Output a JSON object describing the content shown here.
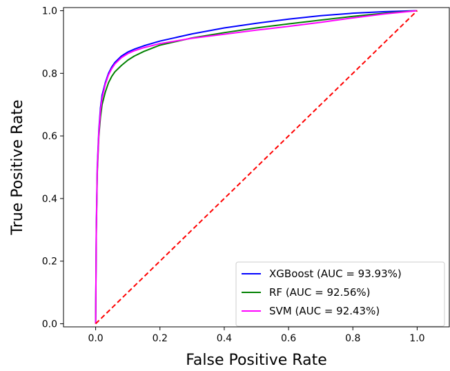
{
  "chart_data": {
    "type": "line",
    "title": "",
    "xlabel": "False Positive Rate",
    "ylabel": "True Positive Rate",
    "xlim": [
      -0.1,
      1.1
    ],
    "ylim": [
      -0.01,
      1.01
    ],
    "xticks": [
      0.0,
      0.2,
      0.4,
      0.6,
      0.8,
      1.0
    ],
    "xtick_labels": [
      "0.0",
      "0.2",
      "0.4",
      "0.6",
      "0.8",
      "1.0"
    ],
    "yticks": [
      0.0,
      0.2,
      0.4,
      0.6,
      0.8,
      1.0
    ],
    "ytick_labels": [
      "0.0",
      "0.2",
      "0.4",
      "0.6",
      "0.8",
      "1.0"
    ],
    "grid": false,
    "legend_position": "lower-right",
    "series": [
      {
        "name": "XGBoost (AUC = 93.93%)",
        "color": "#0000ff",
        "style": "solid",
        "x": [
          0,
          0.002,
          0.005,
          0.01,
          0.015,
          0.02,
          0.03,
          0.04,
          0.05,
          0.06,
          0.08,
          0.1,
          0.12,
          0.15,
          0.2,
          0.3,
          0.4,
          0.5,
          0.6,
          0.7,
          0.8,
          0.9,
          1.0
        ],
        "y": [
          0,
          0.3,
          0.5,
          0.62,
          0.69,
          0.73,
          0.77,
          0.8,
          0.82,
          0.835,
          0.855,
          0.868,
          0.877,
          0.888,
          0.903,
          0.926,
          0.945,
          0.96,
          0.973,
          0.984,
          0.992,
          0.997,
          1.0
        ]
      },
      {
        "name": "RF (AUC = 92.56%)",
        "color": "#008000",
        "style": "solid",
        "x": [
          0,
          0.002,
          0.005,
          0.01,
          0.015,
          0.02,
          0.03,
          0.04,
          0.05,
          0.06,
          0.08,
          0.1,
          0.12,
          0.15,
          0.2,
          0.3,
          0.4,
          0.5,
          0.6,
          0.7,
          0.8,
          0.9,
          1.0
        ],
        "y": [
          0,
          0.28,
          0.48,
          0.6,
          0.66,
          0.7,
          0.74,
          0.77,
          0.79,
          0.805,
          0.825,
          0.842,
          0.855,
          0.87,
          0.89,
          0.913,
          0.93,
          0.945,
          0.958,
          0.97,
          0.982,
          0.992,
          1.0
        ]
      },
      {
        "name": "SVM (AUC = 92.43%)",
        "color": "#ff00ff",
        "style": "solid",
        "x": [
          0,
          0.002,
          0.005,
          0.01,
          0.015,
          0.02,
          0.03,
          0.04,
          0.05,
          0.06,
          0.08,
          0.1,
          0.12,
          0.15,
          0.2,
          0.3,
          0.4,
          0.5,
          0.6,
          0.7,
          0.8,
          0.9,
          1.0
        ],
        "y": [
          0,
          0.29,
          0.49,
          0.61,
          0.68,
          0.72,
          0.765,
          0.795,
          0.815,
          0.83,
          0.85,
          0.863,
          0.872,
          0.882,
          0.895,
          0.912,
          0.925,
          0.938,
          0.95,
          0.963,
          0.977,
          0.99,
          1.0
        ]
      },
      {
        "name": "",
        "color": "#ff0000",
        "style": "dashed",
        "x": [
          0,
          1
        ],
        "y": [
          0,
          1
        ]
      }
    ]
  }
}
